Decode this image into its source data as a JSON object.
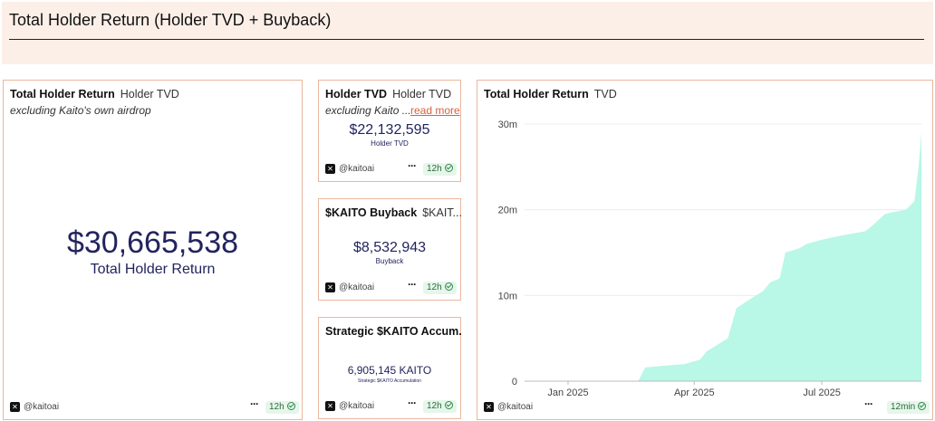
{
  "header": {
    "title": "Total Holder Return (Holder TVD + Buyback)"
  },
  "colors": {
    "accent_border": "#e9b7a0",
    "value_text": "#22245e",
    "area_fill": "#b9f7e6",
    "link": "#d9603b"
  },
  "cards": {
    "total": {
      "title": "Total Holder Return",
      "subtitle": "Holder TVD",
      "note": "excluding Kaito's own airdrop",
      "value": "$30,665,538",
      "caption": "Total Holder Return",
      "handle": "@kaitoai",
      "more": "···",
      "age": "12h"
    },
    "tvd": {
      "title": "Holder TVD",
      "subtitle": "Holder TVD",
      "note": "excluding Kaito ...",
      "read_more": "read more",
      "value": "$22,132,595",
      "caption": "Holder TVD",
      "handle": "@kaitoai",
      "more": "···",
      "age": "12h"
    },
    "buyback": {
      "title": "$KAITO Buyback",
      "subtitle": "$KAIT...",
      "value": "$8,532,943",
      "caption": "Buyback",
      "handle": "@kaitoai",
      "more": "···",
      "age": "12h"
    },
    "strategic": {
      "title": "Strategic $KAITO Accum...",
      "value": "6,905,145 KAITO",
      "caption": "Strategic $KAITO Accumulation",
      "handle": "@kaitoai",
      "more": "···",
      "age": "12h"
    },
    "chart": {
      "title": "Total Holder Return",
      "subtitle": "TVD",
      "handle": "@kaitoai",
      "more": "···",
      "age": "12min"
    }
  },
  "chart_data": {
    "type": "area",
    "title": "Total Holder Return",
    "legend": "TVD",
    "x": [
      "2024-12-01",
      "2025-01-01",
      "2025-02-20",
      "2025-02-25",
      "2025-03-10",
      "2025-03-25",
      "2025-04-05",
      "2025-04-10",
      "2025-04-20",
      "2025-04-25",
      "2025-05-01",
      "2025-05-10",
      "2025-05-20",
      "2025-05-25",
      "2025-06-01",
      "2025-06-05",
      "2025-06-15",
      "2025-06-20",
      "2025-07-01",
      "2025-07-15",
      "2025-08-01",
      "2025-08-05",
      "2025-08-15",
      "2025-08-20",
      "2025-08-30",
      "2025-09-05",
      "2025-09-08",
      "2025-09-10"
    ],
    "y": [
      0,
      0,
      0,
      1.6,
      1.8,
      2.0,
      2.5,
      3.5,
      4.5,
      5.0,
      8.5,
      9.5,
      10.5,
      11.5,
      12.0,
      15.0,
      15.5,
      16.0,
      16.5,
      17.0,
      17.5,
      18.0,
      19.5,
      19.7,
      20.0,
      21.0,
      25.0,
      29.0
    ],
    "units": "m",
    "ylim": [
      0,
      30
    ],
    "yticks": [
      "0",
      "10m",
      "20m",
      "30m"
    ],
    "xticks": [
      "Jan 2025",
      "Apr 2025",
      "Jul 2025"
    ],
    "xticks_dates": [
      "2025-01-01",
      "2025-04-01",
      "2025-07-01"
    ],
    "xlim": [
      "2024-12-01",
      "2025-09-10"
    ],
    "grid": "horizontal",
    "color": "#b9f7e6"
  }
}
